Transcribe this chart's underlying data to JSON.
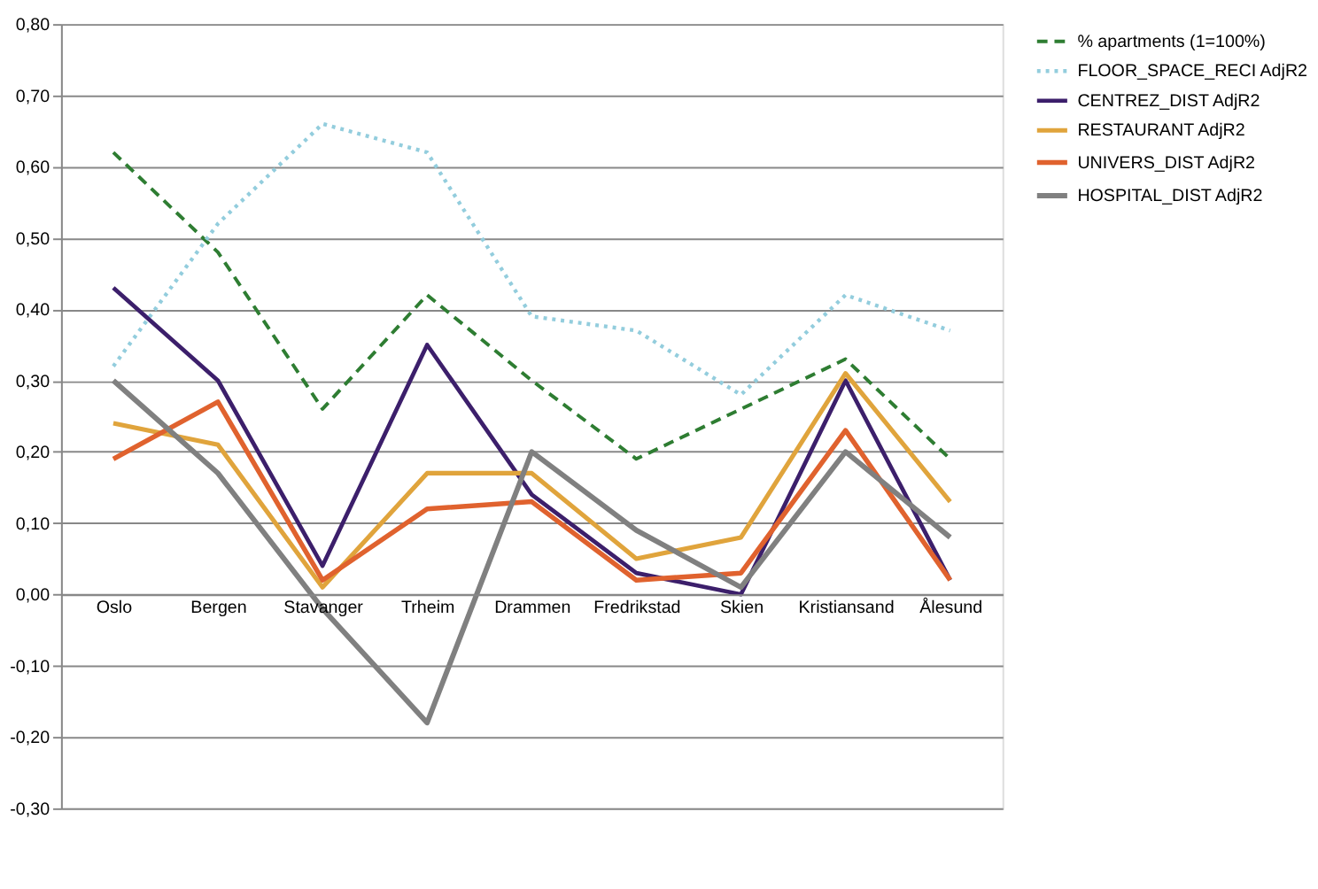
{
  "chart_data": {
    "type": "line",
    "categories": [
      "Oslo",
      "Bergen",
      "Stavanger",
      "Trheim",
      "Drammen",
      "Fredrikstad",
      "Skien",
      "Kristiansand",
      "Ålesund"
    ],
    "series": [
      {
        "name": "% apartments (1=100%)",
        "color": "#2e7d32",
        "line_style": "dashed",
        "values": [
          0.62,
          0.48,
          0.26,
          0.42,
          0.3,
          0.19,
          0.26,
          0.33,
          0.19
        ]
      },
      {
        "name": "FLOOR_SPACE_RECI AdjR2",
        "color": "#93cddd",
        "line_style": "dotted",
        "values": [
          0.32,
          0.52,
          0.66,
          0.62,
          0.39,
          0.37,
          0.28,
          0.42,
          0.37
        ]
      },
      {
        "name": "CENTREZ_DIST AdjR2",
        "color": "#3c1f6b",
        "line_style": "solid",
        "values": [
          0.43,
          0.3,
          0.04,
          0.35,
          0.14,
          0.03,
          0.0,
          0.3,
          0.02
        ]
      },
      {
        "name": "RESTAURANT AdjR2",
        "color": "#e0a43c",
        "line_style": "solid",
        "values": [
          0.24,
          0.21,
          0.01,
          0.17,
          0.17,
          0.05,
          0.08,
          0.31,
          0.13
        ]
      },
      {
        "name": "UNIVERS_DIST AdjR2",
        "color": "#e0622e",
        "line_style": "solid",
        "values": [
          0.19,
          0.27,
          0.02,
          0.12,
          0.13,
          0.02,
          0.03,
          0.23,
          0.02
        ]
      },
      {
        "name": "HOSPITAL_DIST AdjR2",
        "color": "#808080",
        "line_style": "solid",
        "values": [
          0.3,
          0.17,
          -0.02,
          -0.18,
          0.2,
          0.09,
          0.01,
          0.2,
          0.08
        ]
      }
    ],
    "ylim": [
      -0.3,
      0.8
    ],
    "yticks": [
      {
        "value": -0.3,
        "label": "-0,30"
      },
      {
        "value": -0.2,
        "label": "-0,20"
      },
      {
        "value": -0.1,
        "label": "-0,10"
      },
      {
        "value": 0,
        "label": "0,00"
      },
      {
        "value": 0.1,
        "label": "0,10"
      },
      {
        "value": 0.2,
        "label": "0,20"
      },
      {
        "value": 0.3,
        "label": "0,30"
      },
      {
        "value": 0.4,
        "label": "0,40"
      },
      {
        "value": 0.5,
        "label": "0,50"
      },
      {
        "value": 0.6,
        "label": "0,60"
      },
      {
        "value": 0.7,
        "label": "0,70"
      },
      {
        "value": 0.8,
        "label": "0,80"
      }
    ],
    "grid": "y",
    "legend": "right",
    "marker": "none"
  }
}
